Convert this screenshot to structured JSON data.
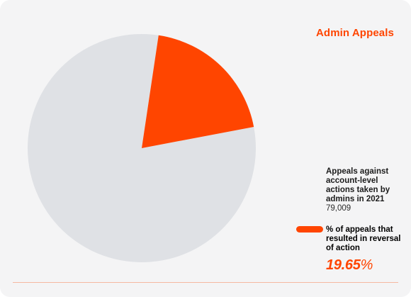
{
  "colors": {
    "accent": "#ff4500",
    "slice_rest": "#dfe1e5",
    "card_bg": "#f4f4f5"
  },
  "chart_data": {
    "type": "pie",
    "title": "Admin Appeals",
    "slices": [
      {
        "label": "% of appeals that resulted in reversal of action",
        "value": 19.65,
        "color": "#ff4500"
      },
      {
        "label": "",
        "value": 80.35,
        "color": "#dfe1e5"
      }
    ],
    "total_label": "Appeals against account-level actions taken by admins in 2021",
    "total_value": "79,009",
    "highlight_label": "% of appeals that resulted in reversal of action",
    "highlight_value": "19.65",
    "highlight_unit": "%"
  }
}
